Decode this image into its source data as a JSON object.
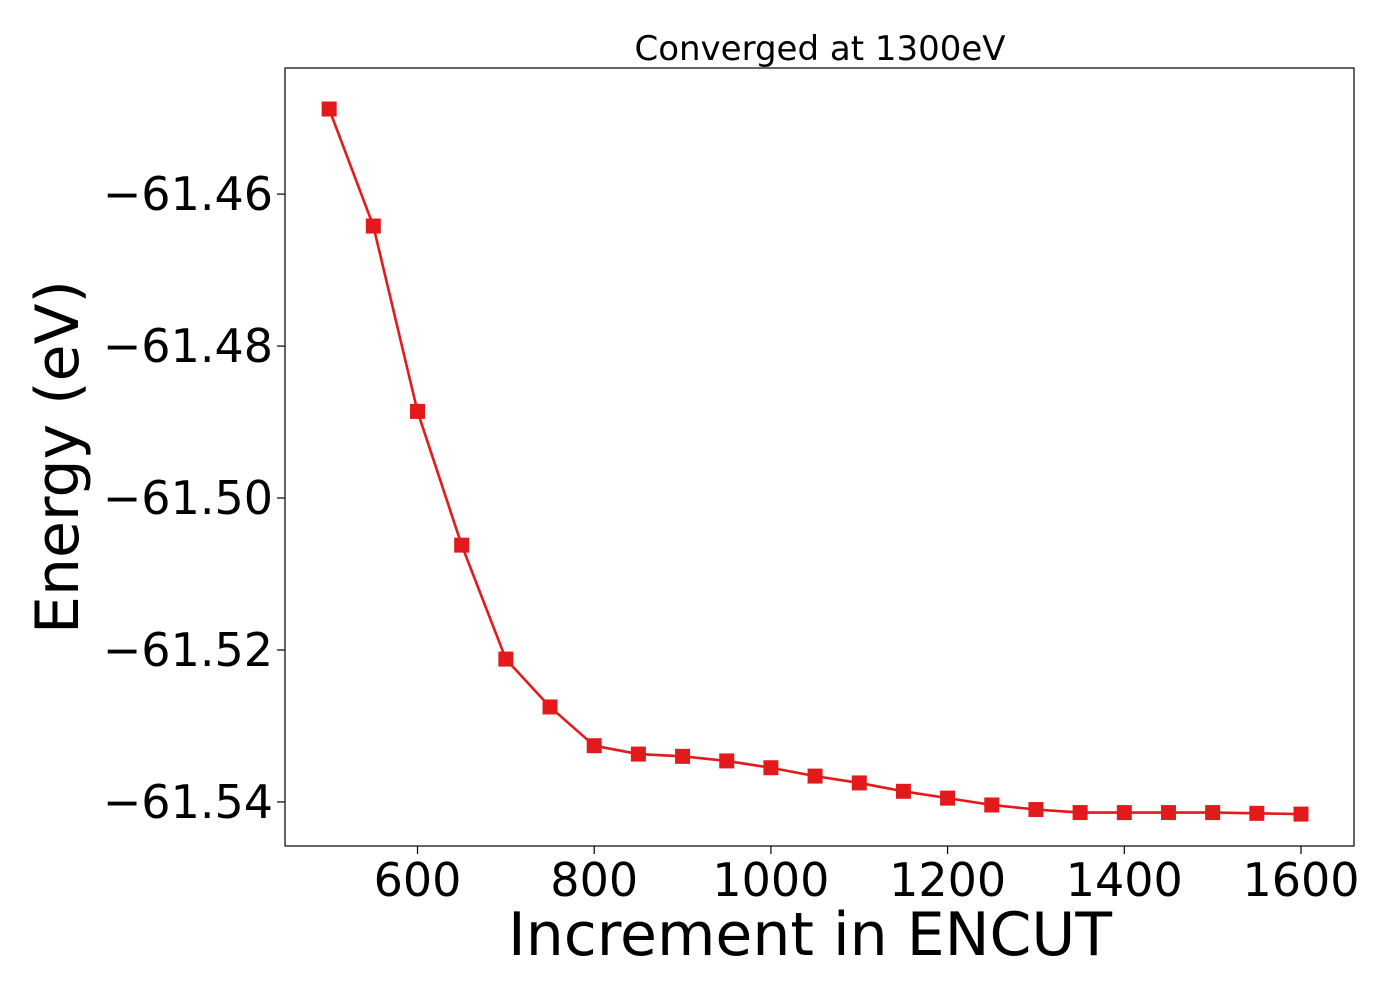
{
  "chart_data": {
    "type": "line",
    "title": "Converged at 1300eV",
    "xlabel": "Increment in ENCUT",
    "ylabel": "Energy (eV)",
    "xlim": [
      450,
      1660
    ],
    "ylim": [
      -61.5458,
      -61.4434
    ],
    "xticks": [
      600,
      800,
      1000,
      1200,
      1400,
      1600
    ],
    "xtick_labels": [
      "600",
      "800",
      "1000",
      "1200",
      "1400",
      "1600"
    ],
    "yticks": [
      -61.46,
      -61.48,
      -61.5,
      -61.52,
      -61.54
    ],
    "ytick_labels": [
      "−61.46",
      "−61.48",
      "−61.50",
      "−61.52",
      "−61.54"
    ],
    "grid": false,
    "series": [
      {
        "color": "#e31a1c",
        "marker": "square",
        "x": [
          500,
          550,
          600,
          650,
          700,
          750,
          800,
          850,
          900,
          950,
          1000,
          1050,
          1100,
          1150,
          1200,
          1250,
          1300,
          1350,
          1400,
          1450,
          1500,
          1550,
          1600
        ],
        "y": [
          -61.4488,
          -61.4642,
          -61.4886,
          -61.5062,
          -61.5212,
          -61.5275,
          -61.5326,
          -61.5337,
          -61.534,
          -61.5346,
          -61.5355,
          -61.5366,
          -61.5375,
          -61.5386,
          -61.5395,
          -61.5404,
          -61.541,
          -61.5414,
          -61.5414,
          -61.5414,
          -61.5414,
          -61.5415,
          -61.5416
        ]
      }
    ]
  }
}
